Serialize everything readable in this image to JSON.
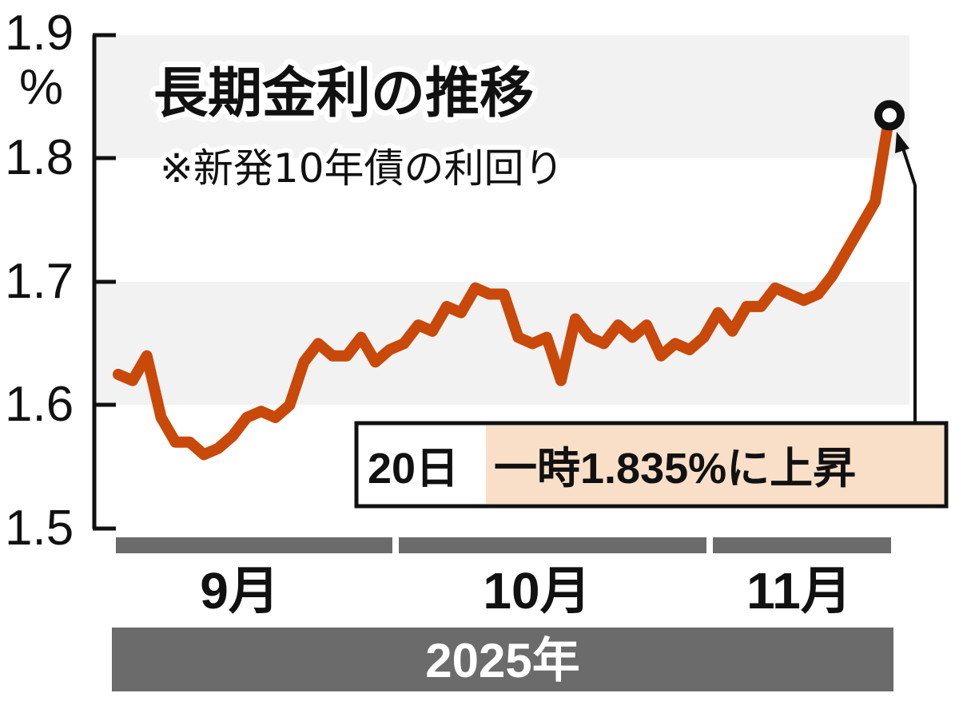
{
  "chart_data": {
    "type": "line",
    "title": "長期金利の推移",
    "subtitle": "※新発10年債の利回り",
    "ylabel": "%",
    "ylim": [
      1.5,
      1.9
    ],
    "yticks": [
      "1.9",
      "1.8",
      "1.7",
      "1.6",
      "1.5"
    ],
    "grid": "alternating bands",
    "months": [
      "9月",
      "10月",
      "11月"
    ],
    "year_label": "2025年",
    "line_color": "#C8490A",
    "annotation": {
      "date": "20日",
      "text": "一時1.835%に上昇",
      "value": 1.835
    },
    "series": [
      {
        "name": "長期金利",
        "values": [
          1.625,
          1.62,
          1.64,
          1.59,
          1.57,
          1.57,
          1.56,
          1.565,
          1.575,
          1.59,
          1.595,
          1.59,
          1.6,
          1.635,
          1.65,
          1.64,
          1.64,
          1.655,
          1.635,
          1.645,
          1.65,
          1.665,
          1.66,
          1.68,
          1.675,
          1.695,
          1.69,
          1.69,
          1.655,
          1.65,
          1.655,
          1.62,
          1.67,
          1.655,
          1.65,
          1.665,
          1.655,
          1.665,
          1.64,
          1.65,
          1.645,
          1.655,
          1.675,
          1.66,
          1.68,
          1.68,
          1.695,
          1.69,
          1.685,
          1.69,
          1.705,
          1.725,
          1.745,
          1.765,
          1.835
        ]
      }
    ]
  }
}
